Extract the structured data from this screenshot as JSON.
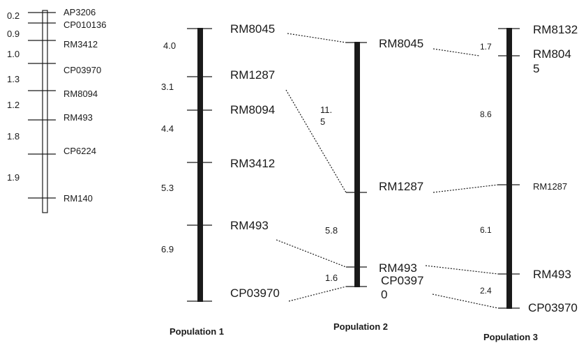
{
  "small_map": {
    "markers": [
      "AP3206",
      "CP010136",
      "RM3412",
      "CP03970",
      "RM8094",
      "RM493",
      "CP6224",
      "RM140"
    ],
    "distances": [
      "0.2",
      "0.9",
      "1.0",
      "1.3",
      "1.2",
      "1.8",
      "1.9"
    ]
  },
  "population1": {
    "title": "Population 1",
    "markers": [
      "RM8045",
      "RM1287",
      "RM8094",
      "RM3412",
      "RM493",
      "CP03970"
    ],
    "distances": [
      "4.0",
      "3.1",
      "4.4",
      "5.3",
      "6.9"
    ]
  },
  "population2": {
    "title": "Population 2",
    "markers": [
      "RM8045",
      "RM1287",
      "RM493",
      "CP0397\n0"
    ],
    "distances": [
      "11.\n5",
      "5.8",
      "1.6"
    ]
  },
  "population3": {
    "title": "Population 3",
    "markers": [
      "RM8132",
      "RM804\n5",
      "RM1287",
      "RM493",
      "CP03970"
    ],
    "distances": [
      "1.7",
      "8.6",
      "6.1",
      "2.4"
    ]
  }
}
